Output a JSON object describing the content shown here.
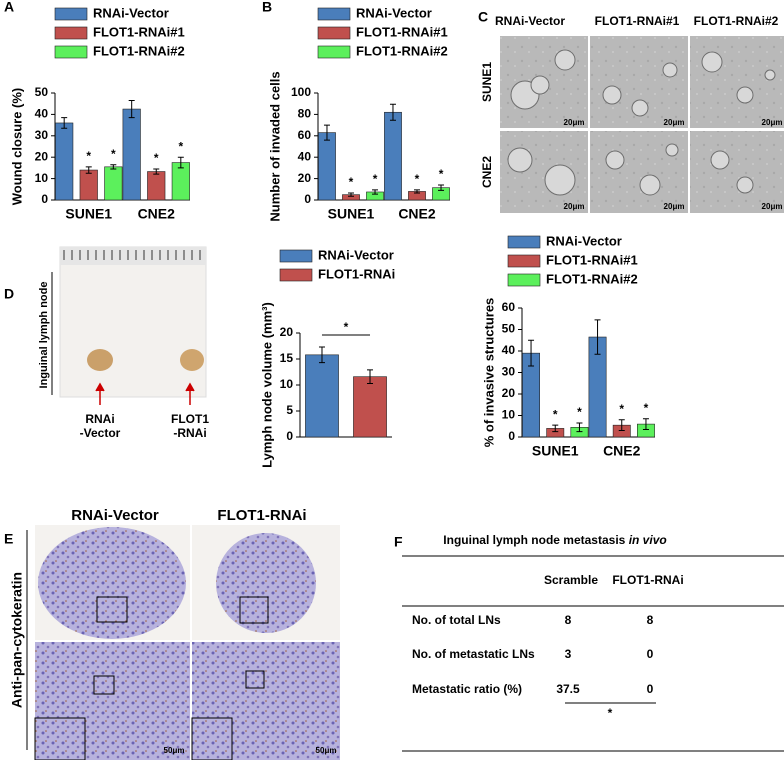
{
  "panel_labels": [
    "A",
    "B",
    "C",
    "D",
    "E",
    "F"
  ],
  "chart_data": [
    {
      "type": "bar",
      "y_label": "Wound closure (%)",
      "categories": [
        "SUNE1",
        "CNE2"
      ],
      "ylim": [
        0,
        50
      ],
      "yticks": [
        0,
        10,
        20,
        30,
        40,
        50
      ],
      "series": [
        {
          "name": "RNAi-Vector",
          "color": "#4a7ebb",
          "values": [
            36,
            42.5
          ],
          "errors": [
            2.5,
            4
          ]
        },
        {
          "name": "FLOT1-RNAi#1",
          "color": "#c0504d",
          "values": [
            14,
            13.3
          ],
          "errors": [
            1.5,
            1.2
          ],
          "sig": "*"
        },
        {
          "name": "FLOT1-RNAi#2",
          "color": "#5cf05c",
          "values": [
            15.5,
            17.5
          ],
          "errors": [
            1,
            2.5
          ],
          "sig": "*"
        }
      ]
    },
    {
      "type": "bar",
      "y_label": "Number of invaded cells",
      "categories": [
        "SUNE1",
        "CNE2"
      ],
      "ylim": [
        0,
        100
      ],
      "yticks": [
        0,
        20,
        40,
        60,
        80,
        100
      ],
      "series": [
        {
          "name": "RNAi-Vector",
          "color": "#4a7ebb",
          "values": [
            63,
            82
          ],
          "errors": [
            7,
            7.5
          ]
        },
        {
          "name": "FLOT1-RNAi#1",
          "color": "#c0504d",
          "values": [
            5,
            8
          ],
          "errors": [
            1.5,
            1.5
          ],
          "sig": "*"
        },
        {
          "name": "FLOT1-RNAi#2",
          "color": "#5cf05c",
          "values": [
            7.5,
            11.5
          ],
          "errors": [
            2,
            2.5
          ],
          "sig": "*"
        }
      ]
    },
    {
      "type": "bar",
      "y_label": "% of invasive structures",
      "categories": [
        "SUNE1",
        "CNE2"
      ],
      "ylim": [
        0,
        60
      ],
      "yticks": [
        0,
        10,
        20,
        30,
        40,
        50,
        60
      ],
      "series": [
        {
          "name": "RNAi-Vector",
          "color": "#4a7ebb",
          "values": [
            39,
            46.5
          ],
          "errors": [
            6,
            8
          ]
        },
        {
          "name": "FLOT1-RNAi#1",
          "color": "#c0504d",
          "values": [
            4,
            5.5
          ],
          "errors": [
            1.5,
            2.5
          ],
          "sig": "*"
        },
        {
          "name": "FLOT1-RNAi#2",
          "color": "#5cf05c",
          "values": [
            4.5,
            6
          ],
          "errors": [
            2,
            2.5
          ],
          "sig": "*"
        }
      ]
    },
    {
      "type": "bar",
      "y_label": "Lymph node volume (mm³)",
      "categories": [
        null
      ],
      "ylim": [
        0,
        20
      ],
      "yticks": [
        0,
        5,
        10,
        15,
        20
      ],
      "bracket": "*",
      "series": [
        {
          "name": "RNAi-Vector",
          "color": "#4a7ebb",
          "values": [
            15.8
          ],
          "errors": [
            1.5
          ]
        },
        {
          "name": "FLOT1-RNAi",
          "color": "#c0504d",
          "values": [
            11.6
          ],
          "errors": [
            1.3
          ]
        }
      ]
    }
  ],
  "panel_c": {
    "columns": [
      "RNAi-Vector",
      "FLOT1-RNAi#1",
      "FLOT1-RNAi#2"
    ],
    "rows": [
      "SUNE1",
      "CNE2"
    ],
    "scale": "20μm"
  },
  "panel_d": {
    "side_label": "Inguinal lymph node",
    "labels": [
      [
        "RNAi",
        "-Vector"
      ],
      [
        "FLOT1",
        "-RNAi"
      ]
    ]
  },
  "panel_e": {
    "columns": [
      "RNAi-Vector",
      "FLOT1-RNAi"
    ],
    "side_label": "Anti-pan-cytokeratin",
    "scale": "50μm"
  },
  "table": {
    "title": "Inguinal lymph node metastasis",
    "title_italic": "in vivo",
    "columns": [
      "Scramble",
      "FLOT1-RNAi"
    ],
    "rows": [
      [
        "No. of total LNs",
        8,
        8
      ],
      [
        "No. of metastatic LNs",
        3,
        0
      ],
      [
        "Metastatic ratio (%)",
        37.5,
        0
      ]
    ],
    "footnote": "*"
  }
}
